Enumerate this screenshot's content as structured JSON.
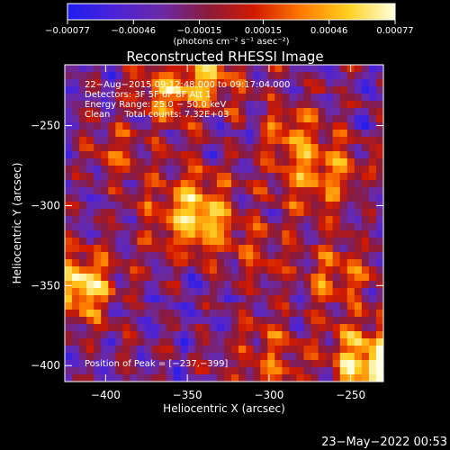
{
  "chart_data": {
    "type": "heatmap",
    "title": "Reconstructed RHESSI Image",
    "xlabel": "Heliocentric X (arcsec)",
    "ylabel": "Heliocentric Y (arcsec)",
    "xlim": [
      -425,
      -230
    ],
    "ylim": [
      -410,
      -212
    ],
    "x_ticks": [
      -400,
      -350,
      -300,
      -250
    ],
    "y_ticks": [
      -400,
      -350,
      -300,
      -250
    ],
    "x_tick_labels": [
      "−400",
      "−350",
      "−300",
      "−250"
    ],
    "y_tick_labels": [
      "−400",
      "−350",
      "−300",
      "−250"
    ],
    "colorbar": {
      "range": [
        -0.00077,
        0.00077
      ],
      "ticks": [
        -0.00077,
        -0.00046,
        -0.00015,
        0.00015,
        0.00046,
        0.00077
      ],
      "tick_labels": [
        "−0.00077",
        "−0.00046",
        "−0.00015",
        "0.00015",
        "0.00046",
        "0.00077"
      ],
      "colormap": [
        "#1e1ef0",
        "#4b22d8",
        "#6a2aa8",
        "#8a1a3a",
        "#d21a00",
        "#ff7a00",
        "#ffd020",
        "#ffffe0"
      ]
    },
    "annotations": [
      "22−Aug−2015 09:12:48.000 to 09:17:04.000",
      "Detectors: 3F 5F 6F 8F Att 1",
      "Energy Range: 25.0 − 50.0 keV",
      "Clean     Total counts: 7.32E+03"
    ],
    "peak_label": "Position of Peak = [−237,−399]",
    "peak": [
      -237,
      -399
    ],
    "sources": [
      {
        "x": -345,
        "y": -305,
        "amp": 1.0,
        "w": 18
      },
      {
        "x": -237,
        "y": -399,
        "amp": 1.15,
        "w": 16
      },
      {
        "x": -415,
        "y": -350,
        "amp": 1.05,
        "w": 14
      },
      {
        "x": -340,
        "y": -222,
        "amp": 0.8,
        "w": 14
      },
      {
        "x": -365,
        "y": -230,
        "amp": 0.6,
        "w": 12
      },
      {
        "x": -270,
        "y": -280,
        "amp": 0.65,
        "w": 18
      },
      {
        "x": -285,
        "y": -255,
        "amp": 0.5,
        "w": 14
      },
      {
        "x": -255,
        "y": -345,
        "amp": 0.55,
        "w": 16
      },
      {
        "x": -300,
        "y": -395,
        "amp": 0.5,
        "w": 16
      },
      {
        "x": -395,
        "y": -270,
        "amp": 0.45,
        "w": 12
      },
      {
        "x": -300,
        "y": -330,
        "amp": 0.35,
        "w": 14
      }
    ],
    "grid": false
  },
  "timestamp": "23−May−2022 00:53",
  "colorbar_unit": "(photons cm⁻² s⁻¹ asec⁻²)"
}
